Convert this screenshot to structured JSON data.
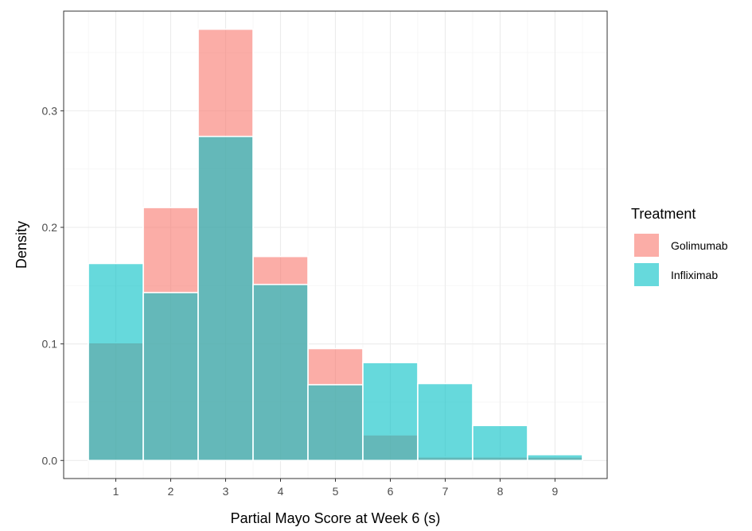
{
  "chart_data": {
    "type": "bar",
    "title": "",
    "xlabel": "Partial Mayo Score at Week 6 (s)",
    "ylabel": "Density",
    "categories": [
      1,
      2,
      3,
      4,
      5,
      6,
      7,
      8,
      9
    ],
    "xlim": [
      0.5,
      9.5
    ],
    "ylim": [
      0,
      0.37
    ],
    "yticks": [
      0.0,
      0.1,
      0.2,
      0.3
    ],
    "ytick_labels": [
      "0.0",
      "0.1",
      "0.2",
      "0.3"
    ],
    "grid": true,
    "legend": {
      "title": "Treatment",
      "position": "right"
    },
    "series": [
      {
        "name": "Golimumab",
        "color": "#F8766D",
        "values": [
          0.101,
          0.217,
          0.37,
          0.175,
          0.096,
          0.022,
          0.003,
          0.003,
          0.003
        ]
      },
      {
        "name": "Infliximab",
        "color": "#00BFC4",
        "values": [
          0.169,
          0.144,
          0.278,
          0.151,
          0.065,
          0.084,
          0.066,
          0.03,
          0.005
        ]
      }
    ],
    "bar_opacity": 0.6
  }
}
